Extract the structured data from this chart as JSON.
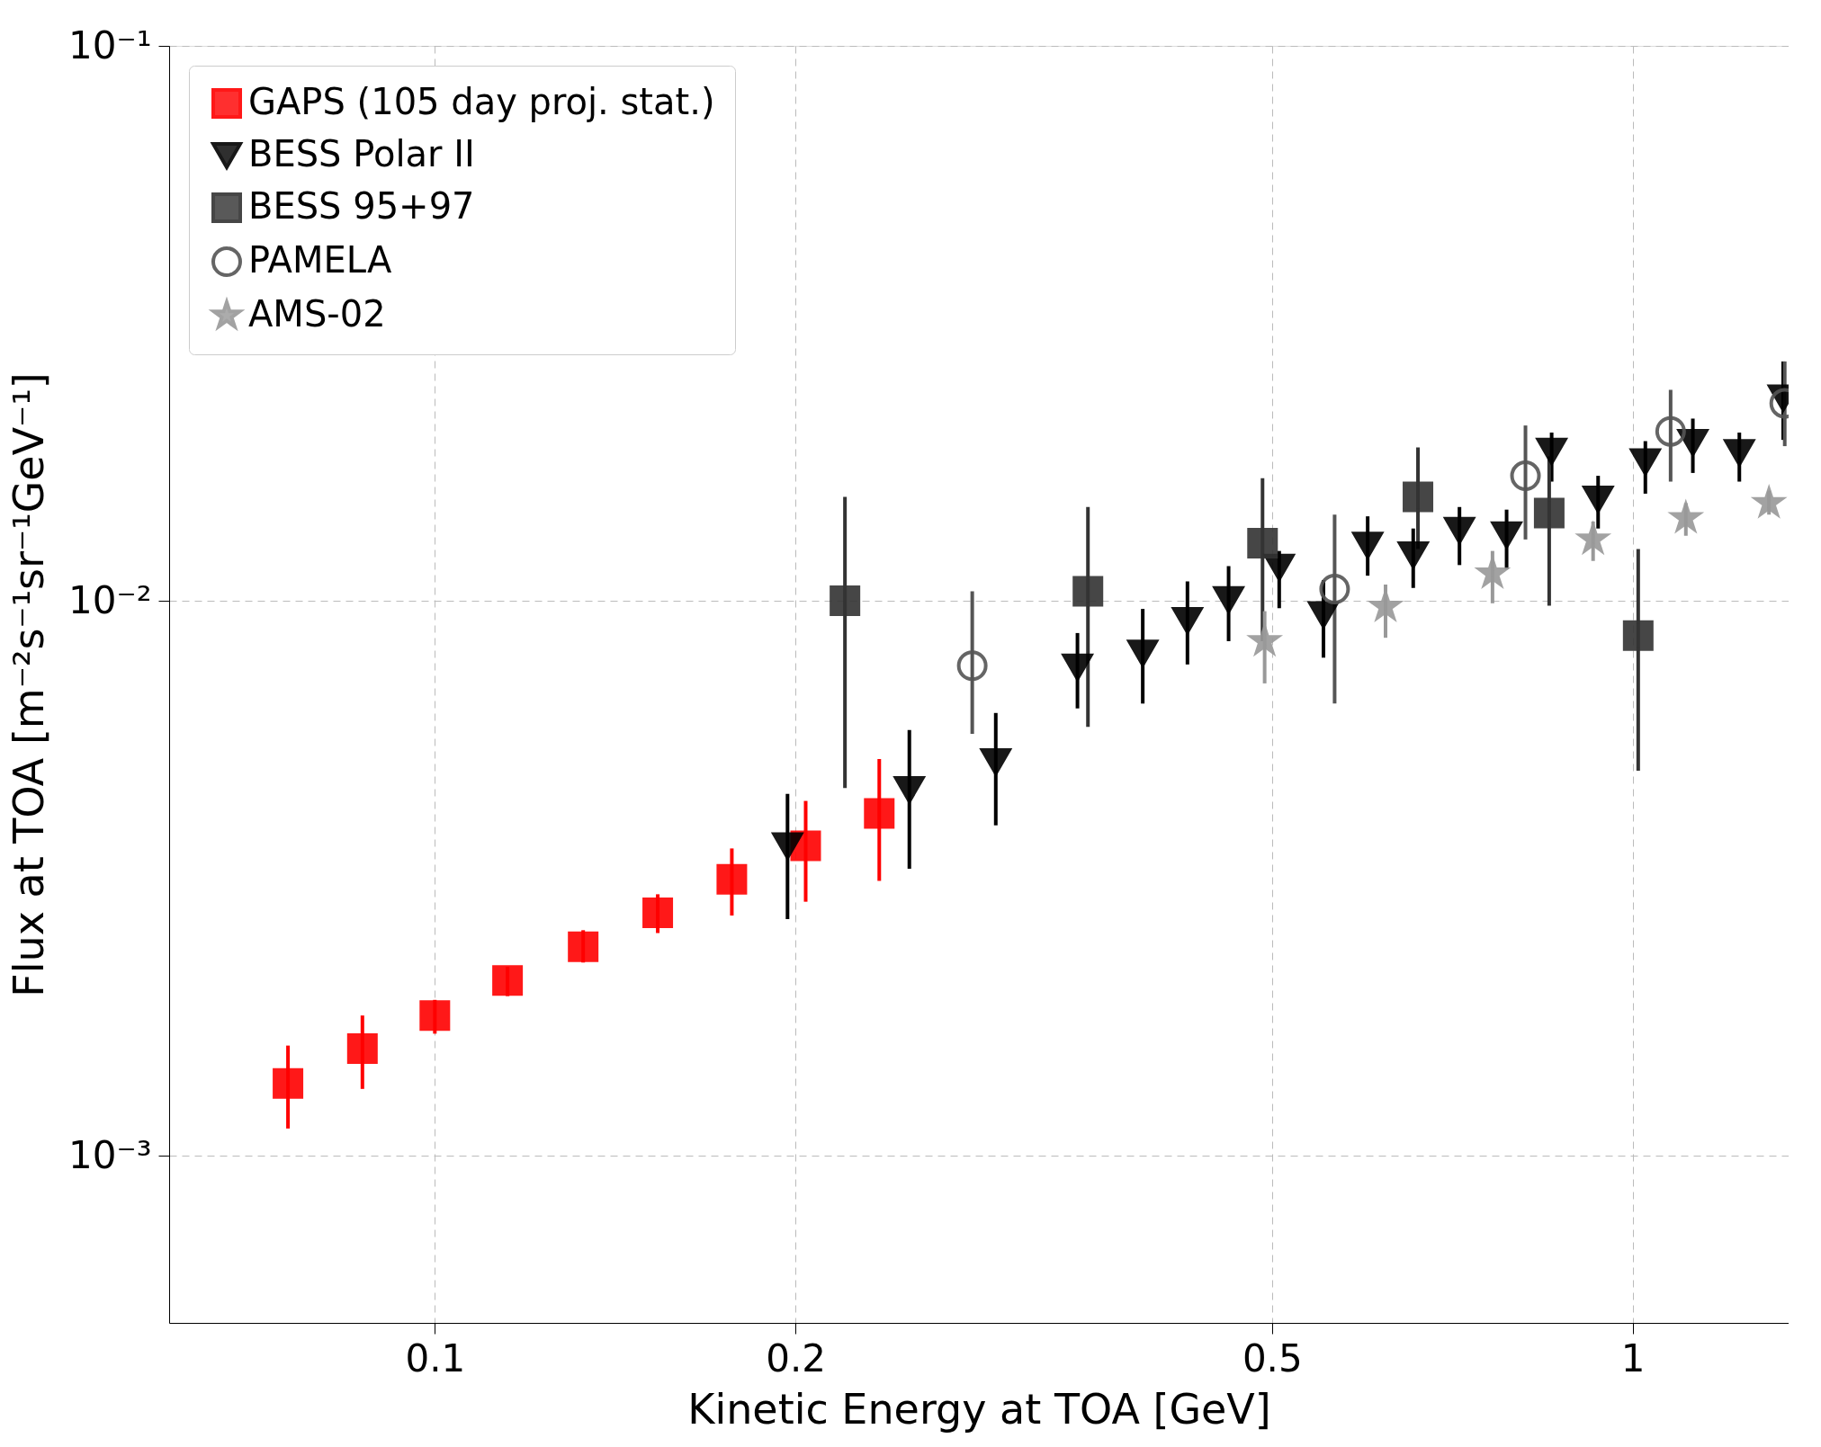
{
  "chart_data": {
    "type": "scatter",
    "xlabel": "Kinetic Energy at TOA [GeV]",
    "ylabel": "Flux at TOA [m⁻²s⁻¹sr⁻¹GeV⁻¹]",
    "log": "xy",
    "xlim": [
      0.06,
      1.35
    ],
    "ylim": [
      0.0005,
      0.1
    ],
    "xticks": [
      0.1,
      0.2,
      0.5,
      1
    ],
    "yticks": [
      {
        "value": 0.001,
        "label": "10⁻³"
      },
      {
        "value": 0.01,
        "label": "10⁻²"
      },
      {
        "value": 0.1,
        "label": "10⁻¹"
      }
    ],
    "grid": true,
    "legend": "top left",
    "series": [
      {
        "name": "GAPS (105 day proj. stat.)",
        "color": "#ff0000",
        "marker": "square",
        "x": [
          0.0754,
          0.087,
          0.1,
          0.115,
          0.133,
          0.1535,
          0.177,
          0.204,
          0.235
        ],
        "values": [
          0.00135,
          0.00156,
          0.00179,
          0.00207,
          0.00238,
          0.00274,
          0.00315,
          0.00362,
          0.00414
        ],
        "errors": [
          [
            0.00112,
            0.00158
          ],
          [
            0.00132,
            0.00179
          ],
          [
            0.00166,
            0.00191
          ],
          [
            0.00194,
            0.00219
          ],
          [
            0.00223,
            0.00255
          ],
          [
            0.00252,
            0.00296
          ],
          [
            0.00271,
            0.00358
          ],
          [
            0.00287,
            0.00436
          ],
          [
            0.00313,
            0.00519
          ]
        ]
      },
      {
        "name": "BESS Polar II",
        "color": "#000000",
        "marker": "triangle",
        "x": [
          0.197,
          0.249,
          0.294,
          0.344,
          0.39,
          0.425,
          0.46,
          0.507,
          0.552,
          0.601,
          0.656,
          0.717,
          0.785,
          0.856,
          0.936,
          1.025,
          1.123,
          1.228,
          1.336
        ],
        "values": [
          0.00362,
          0.00457,
          0.00513,
          0.0076,
          0.00805,
          0.00922,
          0.01005,
          0.0115,
          0.00944,
          0.0126,
          0.0121,
          0.0134,
          0.01315,
          0.0186,
          0.01525,
          0.0178,
          0.0193,
          0.0185,
          0.0232
        ],
        "errors": [
          [
            0.00267,
            0.00449
          ],
          [
            0.00329,
            0.00585
          ],
          [
            0.00394,
            0.00628
          ],
          [
            0.0064,
            0.00875
          ],
          [
            0.00653,
            0.00967
          ],
          [
            0.00768,
            0.01084
          ],
          [
            0.00846,
            0.01155
          ],
          [
            0.0097,
            0.0123
          ],
          [
            0.0079,
            0.0109
          ],
          [
            0.0111,
            0.0142
          ],
          [
            0.01055,
            0.0135
          ],
          [
            0.0116,
            0.01476
          ],
          [
            0.0114,
            0.0146
          ],
          [
            0.0164,
            0.0201
          ],
          [
            0.0135,
            0.0168
          ],
          [
            0.0156,
            0.0194
          ],
          [
            0.017,
            0.0213
          ],
          [
            0.0164,
            0.0201
          ],
          [
            0.0195,
            0.027
          ]
        ]
      },
      {
        "name": "BESS 95+97",
        "color": "#333333",
        "marker": "square",
        "x": [
          0.22,
          0.351,
          0.491,
          0.662,
          0.852,
          1.011
        ],
        "values": [
          0.01,
          0.0104,
          0.0127,
          0.0154,
          0.0144,
          0.00866
        ],
        "errors": [
          [
            0.0046,
            0.0154
          ],
          [
            0.00593,
            0.01476
          ],
          [
            0.00846,
            0.01663
          ],
          [
            0.0124,
            0.0189
          ],
          [
            0.0098,
            0.0182
          ],
          [
            0.00494,
            0.0124
          ]
        ]
      },
      {
        "name": "PAMELA",
        "color": "#555555",
        "marker": "circle",
        "x": [
          0.281,
          0.564,
          0.814,
          1.076,
          1.34
        ],
        "values": [
          0.00764,
          0.0105,
          0.0168,
          0.0202,
          0.0227
        ],
        "errors": [
          [
            0.00576,
            0.0104
          ],
          [
            0.00653,
            0.0143
          ],
          [
            0.0129,
            0.0207
          ],
          [
            0.0164,
            0.024
          ],
          [
            0.019,
            0.027
          ]
        ]
      },
      {
        "name": "AMS-02",
        "color": "#999999",
        "marker": "star",
        "x": [
          0.493,
          0.622,
          0.764,
          0.927,
          1.108,
          1.3
        ],
        "values": [
          0.00846,
          0.00976,
          0.0112,
          0.0129,
          0.0141,
          0.015
        ],
        "errors": [
          [
            0.0071,
            0.00958
          ],
          [
            0.00858,
            0.0107
          ],
          [
            0.0099,
            0.0123
          ],
          [
            0.0118,
            0.0139
          ],
          [
            0.0131,
            0.015
          ],
          [
            0.0143,
            0.0158
          ]
        ]
      }
    ]
  }
}
